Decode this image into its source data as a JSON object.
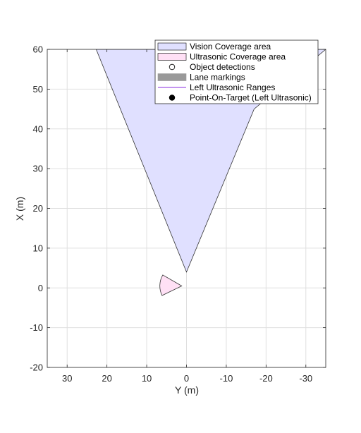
{
  "chart_data": {
    "type": "area",
    "xlabel": "Y (m)",
    "ylabel": "X (m)",
    "xlim": [
      35,
      -35
    ],
    "ylim": [
      -20,
      60
    ],
    "x_ticks": [
      30,
      20,
      10,
      0,
      -10,
      -20,
      -30
    ],
    "y_ticks": [
      -20,
      -10,
      0,
      10,
      20,
      30,
      40,
      50,
      60
    ],
    "x_tick_labels": [
      "30",
      "20",
      "10",
      "0",
      "-10",
      "-20",
      "-30"
    ],
    "y_tick_labels": [
      "-20",
      "-10",
      "0",
      "10",
      "20",
      "30",
      "40",
      "50",
      "60"
    ],
    "grid": true,
    "legend_position": "top-right",
    "series": [
      {
        "name": "Vision Coverage area",
        "kind": "polygon",
        "x": [
          0,
          22.7,
          -35,
          -17
        ],
        "y": [
          4,
          60,
          60,
          45
        ],
        "color": "#e0e0ff",
        "edge_color": "#333333"
      },
      {
        "name": "Ultrasonic Coverage area",
        "kind": "sector",
        "apex": {
          "x": 1.2,
          "y": 0.5
        },
        "radius": 5.5,
        "start_deg": 150,
        "end_deg": 206,
        "color": "#ffe0f5",
        "edge_color": "#333333"
      },
      {
        "name": "Object detections",
        "kind": "marker",
        "x": [],
        "y": []
      },
      {
        "name": "Lane markings",
        "kind": "line",
        "x": [],
        "y": [],
        "color": "#999999"
      },
      {
        "name": "Left Ultrasonic Ranges",
        "kind": "line",
        "x": [],
        "y": [],
        "color": "#8a2be2"
      },
      {
        "name": "Point-On-Target (Left Ultrasonic)",
        "kind": "marker",
        "x": [],
        "y": [],
        "color": "#000000"
      }
    ],
    "legend": [
      {
        "label": "Vision Coverage area",
        "symbol": "patch",
        "fill": "#e0e0ff",
        "edge": "#000000"
      },
      {
        "label": "Ultrasonic Coverage area",
        "symbol": "patch",
        "fill": "#ffe0f5",
        "edge": "#000000"
      },
      {
        "label": "Object detections",
        "symbol": "open-circle",
        "fill": "#ffffff",
        "edge": "#000000"
      },
      {
        "label": "Lane markings",
        "symbol": "patch",
        "fill": "#999999",
        "edge": "#999999"
      },
      {
        "label": "Left Ultrasonic Ranges",
        "symbol": "line",
        "fill": "#8a2be2",
        "edge": "#8a2be2"
      },
      {
        "label": "Point-On-Target (Left Ultrasonic)",
        "symbol": "filled-circle",
        "fill": "#000000",
        "edge": "#000000"
      }
    ]
  }
}
